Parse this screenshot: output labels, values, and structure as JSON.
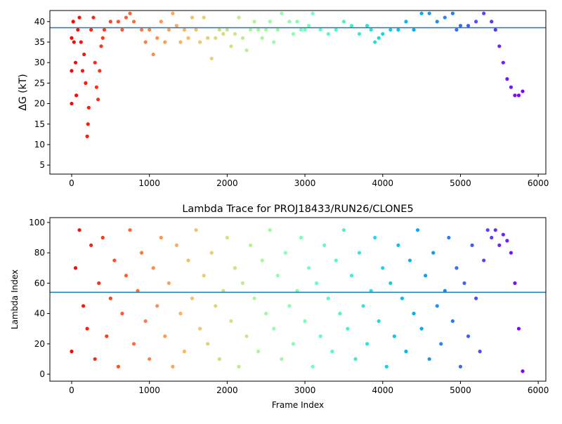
{
  "chart_data": [
    {
      "type": "scatter",
      "ylabel": "ΔG (kT)",
      "colormap": "rainbow_r",
      "hline": 38.5,
      "hline_color": "#1f77b4",
      "xlim": [
        -280,
        6098
      ],
      "xticks": [
        0,
        1000,
        2000,
        3000,
        4000,
        5000,
        6000
      ],
      "ylim": [
        2.8,
        42.7
      ],
      "yticks": [
        5,
        10,
        15,
        20,
        25,
        30,
        35,
        40
      ],
      "x": [
        0,
        0,
        0,
        20,
        30,
        50,
        60,
        80,
        100,
        120,
        140,
        160,
        180,
        200,
        210,
        220,
        250,
        280,
        300,
        320,
        340,
        360,
        380,
        400,
        420,
        500,
        600,
        650,
        700,
        750,
        800,
        900,
        950,
        1000,
        1050,
        1100,
        1150,
        1200,
        1250,
        1300,
        1350,
        1400,
        1450,
        1500,
        1550,
        1600,
        1650,
        1700,
        1750,
        1800,
        1850,
        1900,
        1950,
        2000,
        2050,
        2100,
        2150,
        2200,
        2250,
        2300,
        2350,
        2400,
        2450,
        2500,
        2550,
        2600,
        2650,
        2700,
        2800,
        2850,
        2900,
        2950,
        3000,
        3050,
        3100,
        3200,
        3300,
        3400,
        3500,
        3600,
        3700,
        3800,
        3850,
        3900,
        3950,
        4000,
        4100,
        4200,
        4300,
        4400,
        4500,
        4600,
        4700,
        4800,
        4900,
        4950,
        5000,
        5100,
        5200,
        5300,
        5400,
        5450,
        5500,
        5550,
        5600,
        5650,
        5700,
        5750,
        5800
      ],
      "y": [
        20,
        28,
        36,
        40,
        35,
        30,
        22,
        38,
        41,
        35,
        28,
        32,
        25,
        12,
        15,
        19,
        38,
        41,
        30,
        24,
        21,
        28,
        34,
        36,
        38,
        40,
        40,
        38,
        41,
        42,
        40,
        38,
        35,
        38,
        32,
        36,
        40,
        35,
        38,
        42,
        39,
        35,
        38,
        36,
        41,
        38,
        35,
        41,
        36,
        31,
        36,
        38,
        37,
        38,
        34,
        37,
        41,
        36,
        33,
        38,
        40,
        38,
        36,
        38,
        40,
        35,
        38,
        42,
        40,
        37,
        40,
        38,
        38,
        39,
        42,
        38,
        37,
        38,
        40,
        39,
        37,
        39,
        38,
        35,
        36,
        37,
        38,
        38,
        40,
        38,
        42,
        42,
        40,
        41,
        42,
        38,
        39,
        39,
        40,
        42,
        40,
        38,
        34,
        30,
        26,
        24,
        22,
        22,
        23
      ]
    },
    {
      "type": "scatter",
      "title": "Lambda Trace for PROJ18433/RUN26/CLONE5",
      "xlabel": "Frame Index",
      "ylabel": "Lambda Index",
      "colormap": "rainbow_r",
      "hline": 54,
      "hline_color": "#1f77b4",
      "xlim": [
        -280,
        6098
      ],
      "xticks": [
        0,
        1000,
        2000,
        3000,
        4000,
        5000,
        6000
      ],
      "ylim": [
        -4.6,
        103.2
      ],
      "yticks": [
        0,
        20,
        40,
        60,
        80,
        100
      ],
      "x": [
        0,
        50,
        100,
        150,
        200,
        250,
        300,
        350,
        400,
        450,
        500,
        550,
        600,
        650,
        700,
        750,
        800,
        850,
        900,
        950,
        1000,
        1050,
        1100,
        1150,
        1200,
        1250,
        1300,
        1350,
        1400,
        1450,
        1500,
        1550,
        1600,
        1650,
        1700,
        1750,
        1800,
        1850,
        1900,
        1950,
        2000,
        2050,
        2100,
        2150,
        2200,
        2250,
        2300,
        2350,
        2400,
        2450,
        2500,
        2550,
        2600,
        2650,
        2700,
        2750,
        2800,
        2850,
        2900,
        2950,
        3000,
        3050,
        3100,
        3150,
        3200,
        3250,
        3300,
        3350,
        3400,
        3450,
        3500,
        3550,
        3600,
        3650,
        3700,
        3750,
        3800,
        3850,
        3900,
        3950,
        4000,
        4050,
        4100,
        4150,
        4200,
        4250,
        4300,
        4350,
        4400,
        4450,
        4500,
        4550,
        4600,
        4650,
        4700,
        4750,
        4800,
        4850,
        4900,
        4950,
        5000,
        5050,
        5100,
        5150,
        5200,
        5250,
        5300,
        5350,
        5400,
        5450,
        5500,
        5550,
        5600,
        5650,
        5700,
        5750,
        5800
      ],
      "y": [
        15,
        70,
        95,
        45,
        30,
        85,
        10,
        60,
        90,
        25,
        50,
        75,
        5,
        40,
        65,
        95,
        20,
        55,
        80,
        35,
        10,
        70,
        45,
        90,
        25,
        60,
        5,
        85,
        40,
        15,
        75,
        50,
        95,
        30,
        65,
        20,
        80,
        45,
        10,
        55,
        90,
        35,
        70,
        5,
        60,
        25,
        85,
        50,
        15,
        75,
        40,
        95,
        30,
        65,
        10,
        80,
        45,
        20,
        55,
        90,
        35,
        70,
        5,
        60,
        25,
        85,
        50,
        15,
        75,
        40,
        95,
        30,
        65,
        10,
        80,
        45,
        20,
        55,
        90,
        35,
        70,
        5,
        60,
        25,
        85,
        50,
        15,
        75,
        40,
        95,
        30,
        65,
        10,
        80,
        45,
        20,
        55,
        90,
        35,
        70,
        5,
        60,
        25,
        85,
        50,
        15,
        75,
        95,
        90,
        95,
        85,
        92,
        88,
        80,
        60,
        30,
        2
      ]
    }
  ]
}
